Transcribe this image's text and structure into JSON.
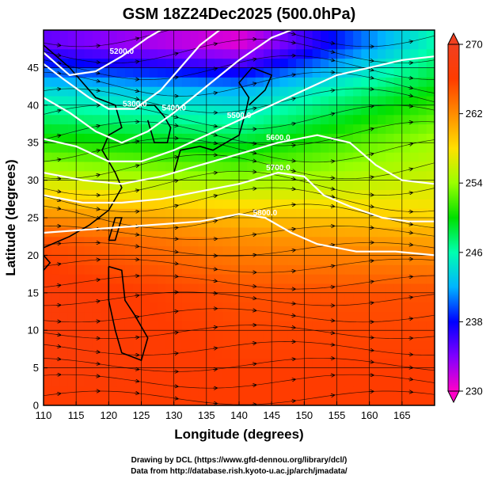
{
  "chart_data": {
    "type": "heatmap",
    "title": "GSM 18Z24Dec2025 (500.0hPa)",
    "xlabel": "Longitude (degrees)",
    "ylabel": "Latitude  (degrees)",
    "xlim": [
      110,
      170
    ],
    "ylim": [
      0,
      50
    ],
    "x_ticks": [
      "110",
      "115",
      "120",
      "125",
      "130",
      "135",
      "140",
      "145",
      "150",
      "155",
      "160",
      "165"
    ],
    "y_ticks": [
      "0",
      "5",
      "10",
      "15",
      "20",
      "25",
      "30",
      "35",
      "40",
      "45"
    ],
    "grid": true,
    "colorbar": {
      "min": 230,
      "max": 270,
      "ticks": [
        "230",
        "238",
        "246",
        "254",
        "262",
        "270"
      ],
      "colors": [
        "#ff00c8",
        "#8000ff",
        "#0000ff",
        "#00b4ff",
        "#00ffb0",
        "#00e000",
        "#9aff00",
        "#ffe000",
        "#ff8c00",
        "#ff3c00",
        "#f04020"
      ]
    },
    "temperature_field_bands": [
      {
        "lat": 48,
        "west_value": 235,
        "mid_value": 231,
        "east_value": 246
      },
      {
        "lat": 42,
        "west_value": 244,
        "mid_value": 242,
        "east_value": 250
      },
      {
        "lat": 36,
        "west_value": 250,
        "mid_value": 248,
        "east_value": 254
      },
      {
        "lat": 30,
        "west_value": 256,
        "mid_value": 254,
        "east_value": 256
      },
      {
        "lat": 26,
        "west_value": 261,
        "mid_value": 259,
        "east_value": 258
      },
      {
        "lat": 22,
        "west_value": 265,
        "mid_value": 262,
        "east_value": 261
      },
      {
        "lat": 15,
        "west_value": 267,
        "mid_value": 265,
        "east_value": 265
      },
      {
        "lat": 5,
        "west_value": 267,
        "mid_value": 266,
        "east_value": 266
      },
      {
        "lat": 0,
        "west_value": 266,
        "mid_value": 266,
        "east_value": 266
      }
    ],
    "contours": [
      {
        "level": "5200.0",
        "points": [
          [
            110,
            47
          ],
          [
            114,
            44
          ],
          [
            118,
            44.5
          ],
          [
            122,
            46.5
          ],
          [
            126,
            49
          ],
          [
            128,
            50
          ]
        ]
      },
      {
        "level": "5300.0",
        "points": [
          [
            110,
            45.5
          ],
          [
            113,
            43.5
          ],
          [
            117,
            41
          ],
          [
            120,
            39.5
          ],
          [
            124,
            39.5
          ],
          [
            128,
            42
          ],
          [
            131,
            45
          ],
          [
            134,
            48
          ],
          [
            137,
            50
          ]
        ]
      },
      {
        "level": "5400.0",
        "points": [
          [
            110,
            41
          ],
          [
            114,
            39
          ],
          [
            118,
            36.5
          ],
          [
            122,
            35
          ],
          [
            126,
            36.5
          ],
          [
            130,
            39
          ],
          [
            135,
            42.5
          ],
          [
            140,
            46
          ],
          [
            145,
            49
          ],
          [
            148,
            50
          ]
        ]
      },
      {
        "level": "5500.0",
        "points": [
          [
            110,
            35.5
          ],
          [
            115,
            34.5
          ],
          [
            120,
            32.5
          ],
          [
            125,
            32.5
          ],
          [
            130,
            34
          ],
          [
            135,
            36
          ],
          [
            140,
            38
          ],
          [
            145,
            40
          ],
          [
            150,
            42
          ],
          [
            155,
            44
          ],
          [
            160,
            45
          ],
          [
            165,
            46
          ],
          [
            170,
            46.5
          ]
        ]
      },
      {
        "level": "5600.0",
        "points": [
          [
            110,
            31
          ],
          [
            116,
            30
          ],
          [
            122,
            29.5
          ],
          [
            128,
            30.5
          ],
          [
            134,
            32
          ],
          [
            140,
            33.5
          ],
          [
            146,
            35
          ],
          [
            152,
            36
          ],
          [
            157,
            35
          ],
          [
            161,
            32
          ],
          [
            165,
            30
          ],
          [
            170,
            29.5
          ]
        ]
      },
      {
        "level": "5700.0",
        "points": [
          [
            110,
            28
          ],
          [
            116,
            27
          ],
          [
            122,
            27
          ],
          [
            128,
            27.5
          ],
          [
            134,
            28.5
          ],
          [
            140,
            29.5
          ],
          [
            146,
            31
          ],
          [
            150,
            30.5
          ],
          [
            153,
            28
          ],
          [
            157,
            26.5
          ],
          [
            162,
            25
          ],
          [
            166,
            24.5
          ],
          [
            170,
            24.5
          ]
        ]
      },
      {
        "level": "5800.0",
        "points": [
          [
            110,
            23
          ],
          [
            118,
            23.5
          ],
          [
            126,
            24
          ],
          [
            134,
            24.5
          ],
          [
            140,
            25.5
          ],
          [
            144,
            25
          ],
          [
            148,
            23
          ],
          [
            152,
            21.5
          ],
          [
            158,
            20.5
          ],
          [
            164,
            20.5
          ],
          [
            170,
            20
          ]
        ]
      }
    ],
    "contour_labels": [
      "5200.0",
      "5300.0",
      "5400.0",
      "5500.0",
      "5600.0",
      "5700.0",
      "5800.0"
    ]
  },
  "footer": {
    "drawing_credit": "Drawing by DCL (https://www.gfd-dennou.org/library/dcl/)",
    "data_credit": "Data from http://database.rish.kyoto-u.ac.jp/arch/jmadata/"
  }
}
